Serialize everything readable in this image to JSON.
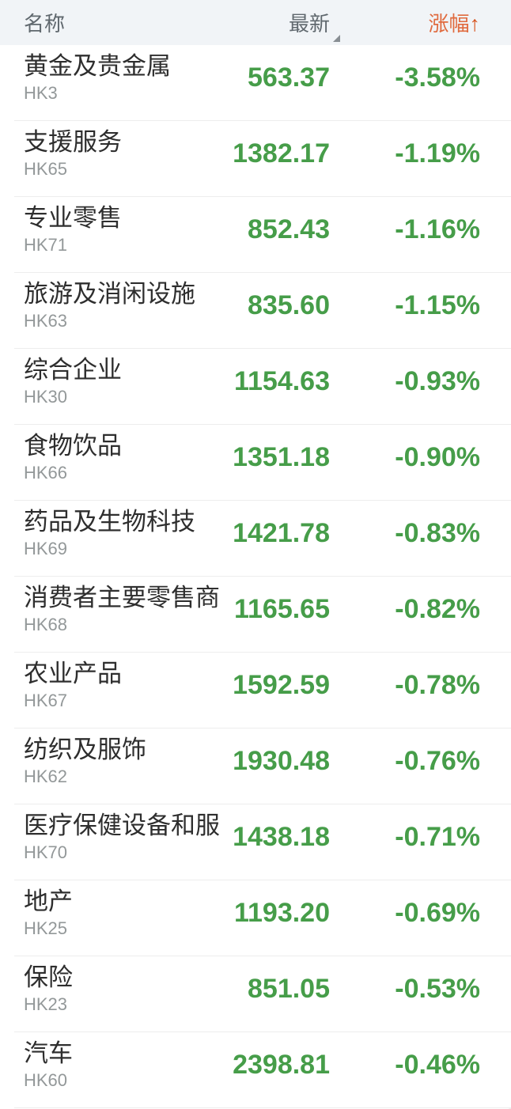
{
  "header": {
    "name_label": "名称",
    "latest_label": "最新",
    "change_label": "涨幅",
    "sort_arrow": "↑"
  },
  "colors": {
    "header_background": "#f1f4f7",
    "header_text": "#60686e",
    "change_header_orange": "#e06a3e",
    "sort_arrow_orange": "#d7531d",
    "value_green": "#469d49",
    "row_name_text": "#2e2e2e",
    "row_code_text": "#939899",
    "divider": "#ededed"
  },
  "icons": {
    "latest_sort_indicator": "corner-triangle",
    "change_sort_direction": "up-arrow"
  },
  "rows": [
    {
      "name": "黄金及贵金属",
      "code": "HK3",
      "latest": "563.37",
      "change": "-3.58%"
    },
    {
      "name": "支援服务",
      "code": "HK65",
      "latest": "1382.17",
      "change": "-1.19%"
    },
    {
      "name": "专业零售",
      "code": "HK71",
      "latest": "852.43",
      "change": "-1.16%"
    },
    {
      "name": "旅游及消闲设施",
      "code": "HK63",
      "latest": "835.60",
      "change": "-1.15%"
    },
    {
      "name": "综合企业",
      "code": "HK30",
      "latest": "1154.63",
      "change": "-0.93%"
    },
    {
      "name": "食物饮品",
      "code": "HK66",
      "latest": "1351.18",
      "change": "-0.90%"
    },
    {
      "name": "药品及生物科技",
      "code": "HK69",
      "latest": "1421.78",
      "change": "-0.83%"
    },
    {
      "name": "消费者主要零售商",
      "code": "HK68",
      "latest": "1165.65",
      "change": "-0.82%"
    },
    {
      "name": "农业产品",
      "code": "HK67",
      "latest": "1592.59",
      "change": "-0.78%"
    },
    {
      "name": "纺织及服饰",
      "code": "HK62",
      "latest": "1930.48",
      "change": "-0.76%"
    },
    {
      "name": "医疗保健设备和服",
      "code": "HK70",
      "latest": "1438.18",
      "change": "-0.71%"
    },
    {
      "name": "地产",
      "code": "HK25",
      "latest": "1193.20",
      "change": "-0.69%"
    },
    {
      "name": "保险",
      "code": "HK23",
      "latest": "851.05",
      "change": "-0.53%"
    },
    {
      "name": "汽车",
      "code": "HK60",
      "latest": "2398.81",
      "change": "-0.46%"
    }
  ]
}
